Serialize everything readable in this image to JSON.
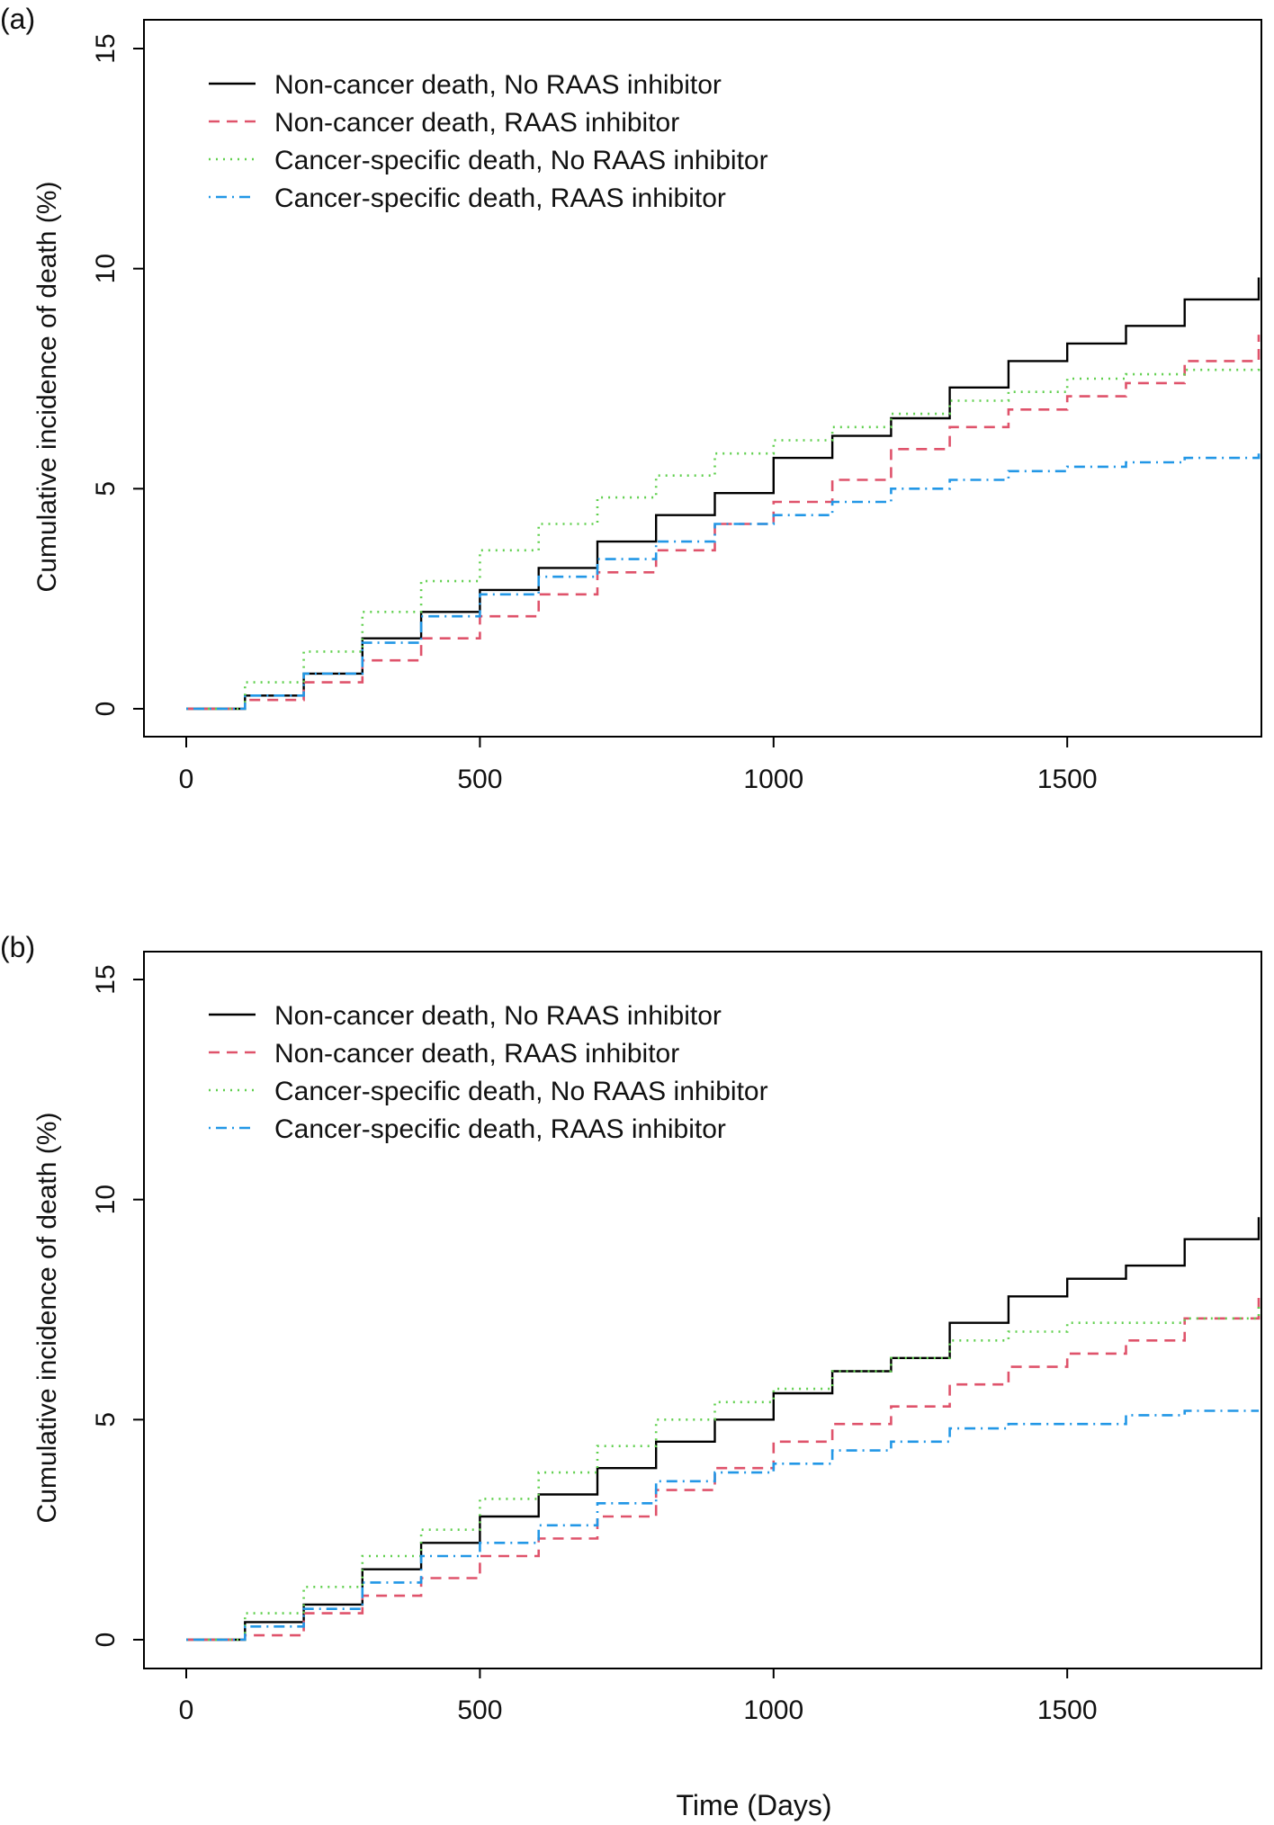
{
  "chart_data": [
    {
      "panel_label": "(a)",
      "type": "line",
      "title": "",
      "xlabel": "",
      "ylabel": "Cumulative incidence of death (%)",
      "xlim": [
        0,
        1826
      ],
      "ylim": [
        0,
        15
      ],
      "xticks": [
        0,
        500,
        1000,
        1500
      ],
      "yticks": [
        0,
        5,
        10,
        15
      ],
      "grid": false,
      "legend_position": "top-left",
      "series": [
        {
          "name": "Non-cancer death, No RAAS inhibitor",
          "color": "#000000",
          "linestyle": "solid",
          "points": [
            [
              0,
              0
            ],
            [
              100,
              0.3
            ],
            [
              200,
              0.8
            ],
            [
              300,
              1.6
            ],
            [
              400,
              2.2
            ],
            [
              500,
              2.7
            ],
            [
              600,
              3.2
            ],
            [
              700,
              3.8
            ],
            [
              800,
              4.4
            ],
            [
              900,
              4.9
            ],
            [
              1000,
              5.7
            ],
            [
              1100,
              6.2
            ],
            [
              1200,
              6.6
            ],
            [
              1300,
              7.3
            ],
            [
              1400,
              7.9
            ],
            [
              1500,
              8.3
            ],
            [
              1600,
              8.7
            ],
            [
              1700,
              9.3
            ],
            [
              1826,
              9.8
            ]
          ]
        },
        {
          "name": "Non-cancer death, RAAS inhibitor",
          "color": "#DF536B",
          "linestyle": "dashed",
          "points": [
            [
              0,
              0
            ],
            [
              100,
              0.2
            ],
            [
              200,
              0.6
            ],
            [
              300,
              1.1
            ],
            [
              400,
              1.6
            ],
            [
              500,
              2.1
            ],
            [
              600,
              2.6
            ],
            [
              700,
              3.1
            ],
            [
              800,
              3.6
            ],
            [
              900,
              4.2
            ],
            [
              1000,
              4.7
            ],
            [
              1100,
              5.2
            ],
            [
              1200,
              5.9
            ],
            [
              1300,
              6.4
            ],
            [
              1400,
              6.8
            ],
            [
              1500,
              7.1
            ],
            [
              1600,
              7.4
            ],
            [
              1700,
              7.9
            ],
            [
              1826,
              8.5
            ]
          ]
        },
        {
          "name": "Cancer-specific death, No RAAS inhibitor",
          "color": "#61D04F",
          "linestyle": "dotted",
          "points": [
            [
              0,
              0
            ],
            [
              100,
              0.6
            ],
            [
              200,
              1.3
            ],
            [
              300,
              2.2
            ],
            [
              400,
              2.9
            ],
            [
              500,
              3.6
            ],
            [
              600,
              4.2
            ],
            [
              700,
              4.8
            ],
            [
              800,
              5.3
            ],
            [
              900,
              5.8
            ],
            [
              1000,
              6.1
            ],
            [
              1100,
              6.4
            ],
            [
              1200,
              6.7
            ],
            [
              1300,
              7.0
            ],
            [
              1400,
              7.2
            ],
            [
              1500,
              7.5
            ],
            [
              1600,
              7.6
            ],
            [
              1700,
              7.7
            ],
            [
              1826,
              7.8
            ]
          ]
        },
        {
          "name": "Cancer-specific death, RAAS inhibitor",
          "color": "#2297E6",
          "linestyle": "dotdash",
          "points": [
            [
              0,
              0
            ],
            [
              100,
              0.3
            ],
            [
              200,
              0.8
            ],
            [
              300,
              1.5
            ],
            [
              400,
              2.1
            ],
            [
              500,
              2.6
            ],
            [
              600,
              3.0
            ],
            [
              700,
              3.4
            ],
            [
              800,
              3.8
            ],
            [
              900,
              4.2
            ],
            [
              1000,
              4.4
            ],
            [
              1100,
              4.7
            ],
            [
              1200,
              5.0
            ],
            [
              1300,
              5.2
            ],
            [
              1400,
              5.4
            ],
            [
              1500,
              5.5
            ],
            [
              1600,
              5.6
            ],
            [
              1700,
              5.7
            ],
            [
              1826,
              5.8
            ]
          ]
        }
      ]
    },
    {
      "panel_label": "(b)",
      "type": "line",
      "title": "",
      "xlabel": "Time (Days)",
      "ylabel": "Cumulative incidence of death (%)",
      "xlim": [
        0,
        1826
      ],
      "ylim": [
        0,
        15
      ],
      "xticks": [
        0,
        500,
        1000,
        1500
      ],
      "yticks": [
        0,
        5,
        10,
        15
      ],
      "grid": false,
      "legend_position": "top-left",
      "series": [
        {
          "name": "Non-cancer death, No RAAS inhibitor",
          "color": "#000000",
          "linestyle": "solid",
          "points": [
            [
              0,
              0
            ],
            [
              100,
              0.4
            ],
            [
              200,
              0.8
            ],
            [
              300,
              1.6
            ],
            [
              400,
              2.2
            ],
            [
              500,
              2.8
            ],
            [
              600,
              3.3
            ],
            [
              700,
              3.9
            ],
            [
              800,
              4.5
            ],
            [
              900,
              5.0
            ],
            [
              1000,
              5.6
            ],
            [
              1100,
              6.1
            ],
            [
              1200,
              6.4
            ],
            [
              1300,
              7.2
            ],
            [
              1400,
              7.8
            ],
            [
              1500,
              8.2
            ],
            [
              1600,
              8.5
            ],
            [
              1700,
              9.1
            ],
            [
              1826,
              9.6
            ]
          ]
        },
        {
          "name": "Non-cancer death, RAAS inhibitor",
          "color": "#DF536B",
          "linestyle": "dashed",
          "points": [
            [
              0,
              0
            ],
            [
              100,
              0.1
            ],
            [
              200,
              0.6
            ],
            [
              300,
              1.0
            ],
            [
              400,
              1.4
            ],
            [
              500,
              1.9
            ],
            [
              600,
              2.3
            ],
            [
              700,
              2.8
            ],
            [
              800,
              3.4
            ],
            [
              900,
              3.9
            ],
            [
              1000,
              4.5
            ],
            [
              1100,
              4.9
            ],
            [
              1200,
              5.3
            ],
            [
              1300,
              5.8
            ],
            [
              1400,
              6.2
            ],
            [
              1500,
              6.5
            ],
            [
              1600,
              6.8
            ],
            [
              1700,
              7.3
            ],
            [
              1826,
              7.9
            ]
          ]
        },
        {
          "name": "Cancer-specific death, No RAAS inhibitor",
          "color": "#61D04F",
          "linestyle": "dotted",
          "points": [
            [
              0,
              0
            ],
            [
              100,
              0.6
            ],
            [
              200,
              1.2
            ],
            [
              300,
              1.9
            ],
            [
              400,
              2.5
            ],
            [
              500,
              3.2
            ],
            [
              600,
              3.8
            ],
            [
              700,
              4.4
            ],
            [
              800,
              5.0
            ],
            [
              900,
              5.4
            ],
            [
              1000,
              5.7
            ],
            [
              1100,
              6.1
            ],
            [
              1200,
              6.4
            ],
            [
              1300,
              6.8
            ],
            [
              1400,
              7.0
            ],
            [
              1500,
              7.2
            ],
            [
              1600,
              7.2
            ],
            [
              1700,
              7.3
            ],
            [
              1826,
              7.6
            ]
          ]
        },
        {
          "name": "Cancer-specific death, RAAS inhibitor",
          "color": "#2297E6",
          "linestyle": "dotdash",
          "points": [
            [
              0,
              0
            ],
            [
              100,
              0.3
            ],
            [
              200,
              0.7
            ],
            [
              300,
              1.3
            ],
            [
              400,
              1.9
            ],
            [
              500,
              2.2
            ],
            [
              600,
              2.6
            ],
            [
              700,
              3.1
            ],
            [
              800,
              3.6
            ],
            [
              900,
              3.8
            ],
            [
              1000,
              4.0
            ],
            [
              1100,
              4.3
            ],
            [
              1200,
              4.5
            ],
            [
              1300,
              4.8
            ],
            [
              1400,
              4.9
            ],
            [
              1500,
              4.9
            ],
            [
              1600,
              5.1
            ],
            [
              1700,
              5.2
            ],
            [
              1826,
              5.2
            ]
          ]
        }
      ]
    }
  ]
}
